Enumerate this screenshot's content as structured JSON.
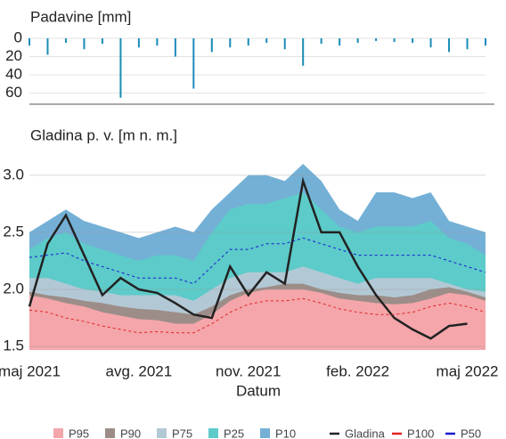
{
  "chart_data": [
    {
      "type": "bar",
      "title": "Padavine [mm]",
      "categories": [
        null,
        null,
        null,
        null,
        null,
        null,
        null,
        null,
        null,
        null,
        null,
        null,
        null,
        null,
        null,
        null,
        null,
        null,
        null,
        null,
        null,
        null,
        null,
        null,
        null,
        null
      ],
      "values": [
        8,
        18,
        5,
        12,
        6,
        65,
        10,
        8,
        20,
        55,
        15,
        10,
        8,
        5,
        12,
        30,
        6,
        8,
        5,
        3,
        4,
        5,
        10,
        15,
        12,
        8
      ],
      "color": "#1a8cb8",
      "ylim": [
        0,
        72
      ],
      "yticks": [
        0,
        20,
        40,
        60
      ],
      "reversed": true,
      "grid": true
    },
    {
      "type": "band-line",
      "title": "Gladina p. v. [m n. m.]",
      "xlabel": "Datum",
      "categories": [
        "maj 2021",
        null,
        null,
        null,
        null,
        null,
        "avg. 2021",
        null,
        null,
        null,
        null,
        null,
        "nov. 2021",
        null,
        null,
        null,
        null,
        null,
        "feb. 2022",
        null,
        null,
        null,
        null,
        null,
        "maj 2022",
        null
      ],
      "ylim": [
        1.47,
        3.17
      ],
      "yticks": [
        {
          "value": 1.5,
          "label": "1.5"
        },
        {
          "value": 2.0,
          "label": "2.0"
        },
        {
          "value": 2.5,
          "label": "2.5"
        },
        {
          "value": 3.0,
          "label": "3.0"
        }
      ],
      "grid": true,
      "series": [
        {
          "name": "P95",
          "kind": "area",
          "color": "#f4a6aa",
          "values": [
            1.95,
            1.92,
            1.88,
            1.85,
            1.8,
            1.77,
            1.74,
            1.73,
            1.7,
            1.7,
            1.78,
            1.9,
            1.97,
            2.0,
            2.0,
            2.0,
            1.97,
            1.92,
            1.9,
            1.88,
            1.87,
            1.88,
            1.92,
            1.97,
            1.95,
            1.9
          ]
        },
        {
          "name": "P90",
          "kind": "area",
          "color": "#9c8d88",
          "values": [
            1.98,
            1.95,
            1.93,
            1.9,
            1.88,
            1.85,
            1.83,
            1.82,
            1.8,
            1.78,
            1.85,
            1.95,
            2.0,
            2.02,
            2.05,
            2.05,
            2.0,
            1.97,
            1.95,
            1.95,
            1.93,
            1.95,
            2.0,
            2.02,
            1.98,
            1.93
          ]
        },
        {
          "name": "P75",
          "kind": "area",
          "color": "#b3c8d5",
          "values": [
            2.1,
            2.1,
            2.05,
            2.0,
            1.98,
            1.95,
            1.95,
            1.95,
            1.95,
            1.9,
            2.0,
            2.1,
            2.15,
            2.15,
            2.15,
            2.2,
            2.15,
            2.1,
            2.05,
            2.1,
            2.1,
            2.1,
            2.1,
            2.05,
            2.0,
            1.98
          ]
        },
        {
          "name": "P25",
          "kind": "area",
          "color": "#5ccbc9",
          "values": [
            2.35,
            2.45,
            2.5,
            2.4,
            2.35,
            2.3,
            2.25,
            2.3,
            2.3,
            2.25,
            2.5,
            2.7,
            2.75,
            2.75,
            2.8,
            2.85,
            2.7,
            2.55,
            2.5,
            2.55,
            2.55,
            2.55,
            2.6,
            2.45,
            2.4,
            2.3
          ]
        },
        {
          "name": "P10",
          "kind": "area",
          "color": "#74b0d6",
          "values": [
            2.5,
            2.6,
            2.7,
            2.6,
            2.55,
            2.5,
            2.45,
            2.5,
            2.55,
            2.5,
            2.7,
            2.85,
            3.0,
            3.0,
            2.95,
            3.1,
            2.95,
            2.7,
            2.6,
            2.85,
            2.85,
            2.8,
            2.85,
            2.6,
            2.55,
            2.5
          ]
        },
        {
          "name": "Gladina",
          "kind": "line",
          "color": "#222222",
          "dashed": false,
          "values": [
            1.85,
            2.4,
            2.65,
            2.3,
            1.95,
            2.1,
            2.0,
            1.97,
            1.88,
            1.78,
            1.75,
            2.2,
            1.95,
            2.15,
            2.05,
            2.95,
            2.5,
            2.5,
            2.2,
            1.95,
            1.75,
            1.65,
            1.57,
            1.68,
            1.7,
            null
          ]
        },
        {
          "name": "P100",
          "kind": "line",
          "color": "#e02424",
          "dashed": true,
          "values": [
            1.82,
            1.8,
            1.75,
            1.72,
            1.68,
            1.65,
            1.62,
            1.63,
            1.62,
            1.62,
            1.7,
            1.8,
            1.87,
            1.9,
            1.9,
            1.92,
            1.88,
            1.83,
            1.8,
            1.78,
            1.78,
            1.8,
            1.85,
            1.88,
            1.85,
            1.8
          ]
        },
        {
          "name": "P50",
          "kind": "line",
          "color": "#1a1ad0",
          "dashed": true,
          "values": [
            2.28,
            2.3,
            2.32,
            2.25,
            2.2,
            2.15,
            2.1,
            2.1,
            2.1,
            2.05,
            2.2,
            2.35,
            2.35,
            2.4,
            2.4,
            2.45,
            2.4,
            2.35,
            2.3,
            2.3,
            2.3,
            2.3,
            2.3,
            2.25,
            2.2,
            2.15
          ]
        }
      ]
    }
  ]
}
